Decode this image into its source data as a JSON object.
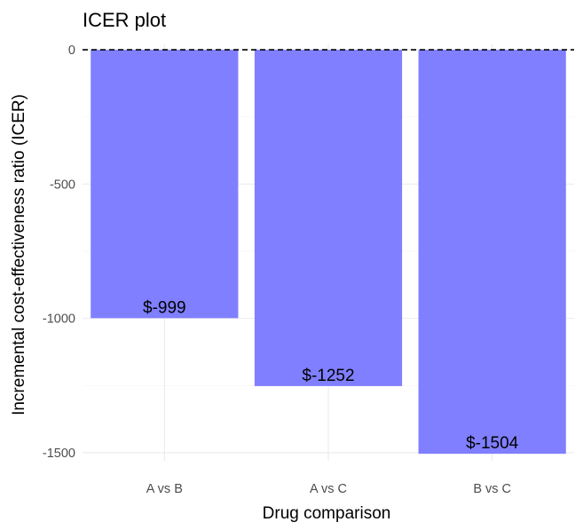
{
  "chart_data": {
    "type": "bar",
    "title": "ICER plot",
    "xlabel": "Drug comparison",
    "ylabel": "Incremental cost-effectiveness ratio (ICER)",
    "categories": [
      "A vs B",
      "A vs C",
      "B vs C"
    ],
    "values": [
      -999,
      -1252,
      -1504
    ],
    "data_labels": [
      "$-999",
      "$-1252",
      "$-1504"
    ],
    "ylim": [
      -1530,
      20
    ],
    "yticks": [
      0,
      -500,
      -1000,
      -1500
    ],
    "ytick_labels": [
      "0",
      "-500",
      "-1000",
      "-1500"
    ],
    "reference_line": {
      "y": 0,
      "style": "dashed",
      "color": "#000000"
    },
    "bar_color": "#7f7fff",
    "grid": true,
    "legend": "none"
  }
}
